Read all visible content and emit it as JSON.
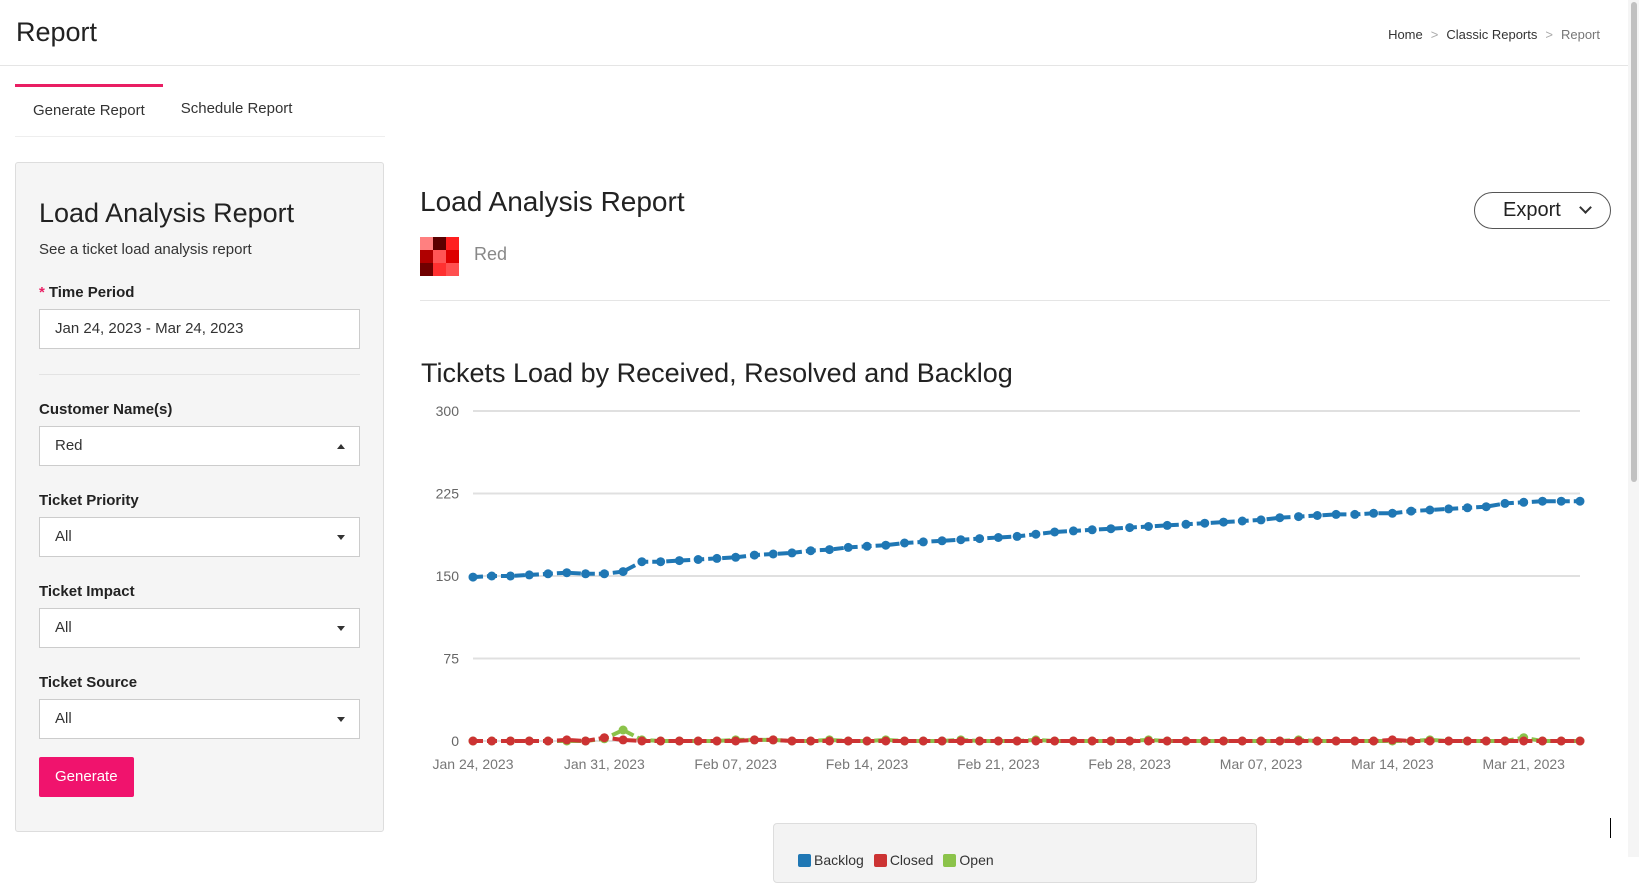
{
  "header": {
    "title": "Report",
    "breadcrumb": [
      "Home",
      "Classic Reports",
      "Report"
    ]
  },
  "tabs": [
    {
      "label": "Generate Report",
      "active": true
    },
    {
      "label": "Schedule Report",
      "active": false
    }
  ],
  "form": {
    "title": "Load Analysis Report",
    "subtitle": "See a ticket load analysis report",
    "time_period": {
      "label": "Time Period",
      "value": "Jan 24, 2023 - Mar 24, 2023"
    },
    "customer": {
      "label": "Customer Name(s)",
      "value": "Red"
    },
    "priority": {
      "label": "Ticket Priority",
      "value": "All"
    },
    "impact": {
      "label": "Ticket Impact",
      "value": "All"
    },
    "source": {
      "label": "Ticket Source",
      "value": "All"
    },
    "generate_label": "Generate"
  },
  "report": {
    "title": "Load Analysis Report",
    "customer": "Red",
    "export_label": "Export",
    "logo_colors": [
      "#ff8080",
      "#5a0000",
      "#ff2020",
      "#b00000",
      "#ff5555",
      "#dd0000",
      "#700000",
      "#ff3030",
      "#ff5050"
    ]
  },
  "chart_data": {
    "type": "line",
    "title": "Tickets Load by Received, Resolved and Backlog",
    "ylim": [
      0,
      300
    ],
    "yticks": [
      0,
      75,
      150,
      225,
      300
    ],
    "xticks": [
      "Jan 24, 2023",
      "Jan 31, 2023",
      "Feb 07, 2023",
      "Feb 14, 2023",
      "Feb 21, 2023",
      "Feb 28, 2023",
      "Mar 07, 2023",
      "Mar 14, 2023",
      "Mar 21, 2023"
    ],
    "x_start": "Jan 24, 2023",
    "x_end": "Mar 24, 2023",
    "grid": true,
    "legend_position": "bottom",
    "series": [
      {
        "name": "Backlog",
        "color": "#1f77b4",
        "values": [
          149,
          150,
          150,
          151,
          152,
          153,
          152,
          152,
          154,
          163,
          163,
          164,
          165,
          166,
          167,
          169,
          170,
          171,
          173,
          174,
          176,
          177,
          178,
          180,
          181,
          182,
          183,
          184,
          185,
          186,
          188,
          190,
          191,
          192,
          193,
          194,
          195,
          196,
          197,
          198,
          199,
          200,
          201,
          203,
          204,
          205,
          206,
          206,
          207,
          207,
          209,
          210,
          211,
          212,
          213,
          216,
          217,
          218,
          218,
          218
        ]
      },
      {
        "name": "Closed",
        "color": "#cc3333",
        "values": [
          0,
          0,
          0,
          0,
          0,
          1,
          0,
          3,
          1,
          0,
          0,
          0,
          0,
          0,
          0,
          1,
          1,
          0,
          0,
          0,
          0,
          0,
          0,
          0,
          0,
          0,
          0,
          0,
          0,
          0,
          0,
          0,
          0,
          0,
          0,
          0,
          0,
          0,
          0,
          0,
          0,
          0,
          0,
          0,
          0,
          0,
          0,
          0,
          0,
          1,
          0,
          0,
          0,
          0,
          0,
          0,
          0,
          0,
          0,
          0
        ]
      },
      {
        "name": "Open",
        "color": "#8bc34a",
        "values": [
          0,
          0,
          0,
          0,
          0,
          0,
          0,
          2,
          10,
          1,
          0,
          0,
          0,
          0,
          1,
          1,
          1,
          0,
          0,
          1,
          0,
          0,
          1,
          0,
          0,
          0,
          1,
          0,
          0,
          0,
          1,
          0,
          0,
          0,
          0,
          0,
          1,
          0,
          0,
          0,
          0,
          0,
          0,
          0,
          1,
          0,
          0,
          0,
          0,
          0,
          0,
          1,
          0,
          0,
          0,
          0,
          3,
          0,
          0,
          0
        ]
      }
    ]
  }
}
